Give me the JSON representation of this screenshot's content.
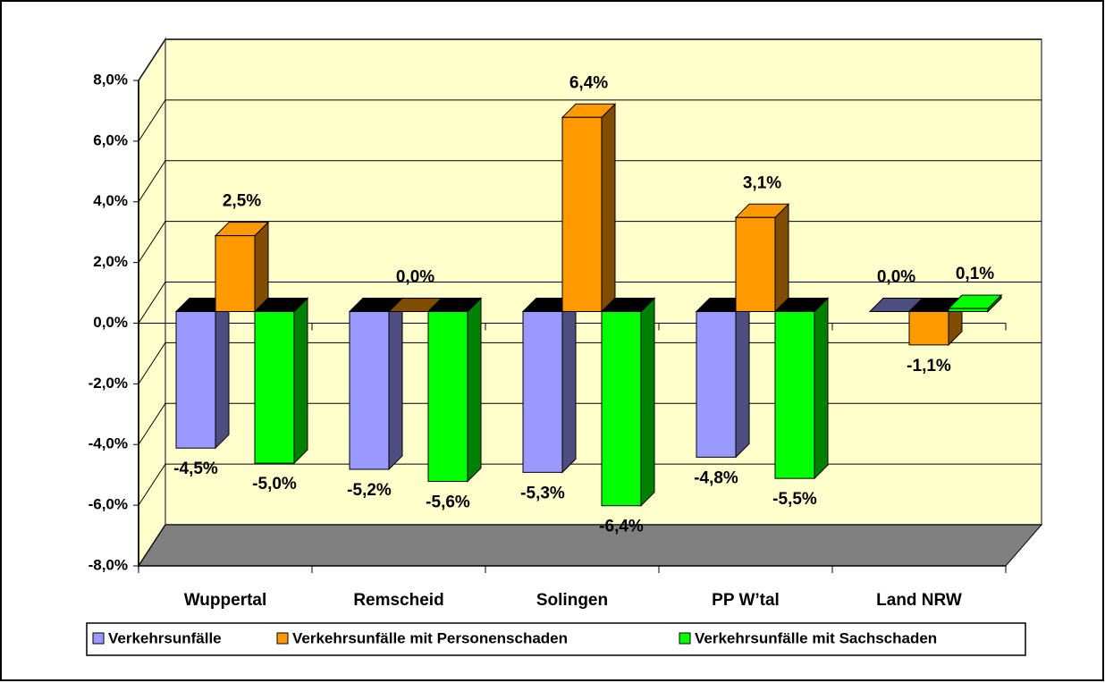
{
  "chart_data": {
    "type": "bar3d",
    "categories": [
      "Wuppertal",
      "Remscheid",
      "Solingen",
      "PP W’tal",
      "Land NRW"
    ],
    "series": [
      {
        "name": "Verkehrsunfälle",
        "color": "#9999ff",
        "side": "#4d4d80",
        "values": [
          -4.5,
          -5.2,
          -5.3,
          -4.8,
          0.0
        ],
        "value_labels": [
          "-4,5%",
          "-5,2%",
          "-5,3%",
          "-4,8%",
          "0,0%"
        ]
      },
      {
        "name": "Verkehrsunfälle mit Personenschaden",
        "color": "#ff9900",
        "side": "#804d00",
        "values": [
          2.5,
          0.0,
          6.4,
          3.1,
          -1.1
        ],
        "value_labels": [
          "2,5%",
          "0,0%",
          "6,4%",
          "3,1%",
          "-1,1%"
        ]
      },
      {
        "name": "Verkehrsunfälle mit Sachschaden",
        "color": "#00ff00",
        "side": "#008000",
        "values": [
          -5.0,
          -5.6,
          -6.4,
          -5.5,
          0.1
        ],
        "value_labels": [
          "-5,0%",
          "-5,6%",
          "-6,4%",
          "-5,5%",
          "0,1%"
        ]
      }
    ],
    "ylim": [
      -8,
      8
    ],
    "yticks": [
      {
        "value": -8,
        "label": "-8,0%"
      },
      {
        "value": -6,
        "label": "-6,0%"
      },
      {
        "value": -4,
        "label": "-4,0%"
      },
      {
        "value": -2,
        "label": "-2,0%"
      },
      {
        "value": 0,
        "label": "0,0%"
      },
      {
        "value": 2,
        "label": "2,0%"
      },
      {
        "value": 4,
        "label": "4,0%"
      },
      {
        "value": 6,
        "label": "6,0%"
      },
      {
        "value": 8,
        "label": "8,0%"
      }
    ],
    "grid": true,
    "wall_color": "#ffffcc",
    "floor_color": "#808080",
    "legend": "bottom"
  }
}
